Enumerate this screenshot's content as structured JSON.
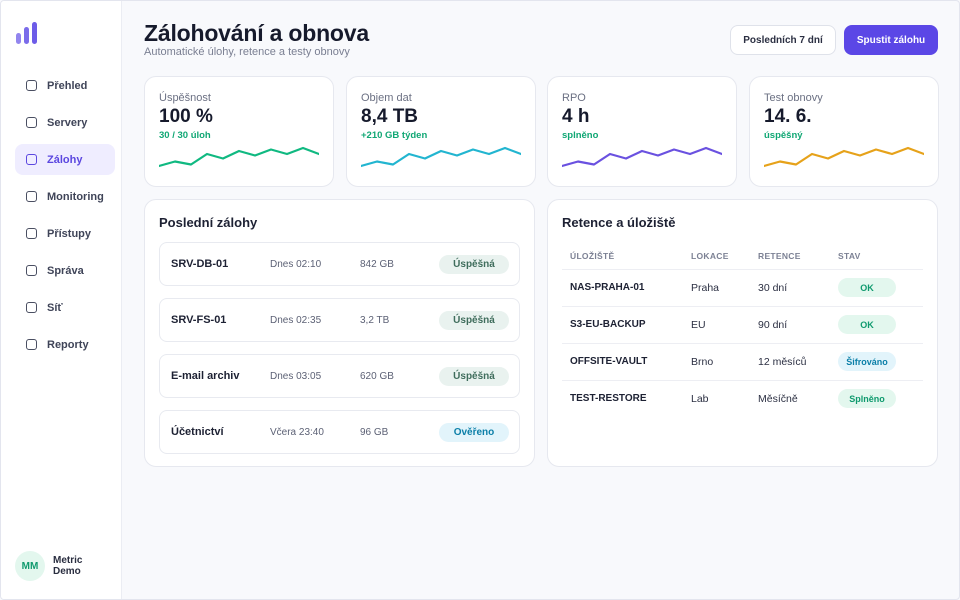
{
  "user": {
    "initials": "MM",
    "name": "Metric Demo"
  },
  "nav": [
    {
      "label": "Přehled",
      "active": false
    },
    {
      "label": "Servery",
      "active": false
    },
    {
      "label": "Zálohy",
      "active": true
    },
    {
      "label": "Monitoring",
      "active": false
    },
    {
      "label": "Přístupy",
      "active": false
    },
    {
      "label": "Správa",
      "active": false
    },
    {
      "label": "Síť",
      "active": false
    },
    {
      "label": "Reporty",
      "active": false
    }
  ],
  "header": {
    "title": "Zálohování a obnova",
    "subtitle": "Automatické úlohy, retence a testy obnovy",
    "period_button": "Posledních 7 dní",
    "run_button": "Spustit zálohu"
  },
  "kpis": [
    {
      "label": "Úspěšnost",
      "value": "100 %",
      "delta": "30 / 30 úloh",
      "color": "#10b981",
      "trend": [
        4,
        7,
        5,
        12,
        9,
        14,
        11,
        15,
        12,
        16,
        12
      ]
    },
    {
      "label": "Objem dat",
      "value": "8,4 TB",
      "delta": "+210 GB týden",
      "color": "#22b5d0",
      "trend": [
        4,
        7,
        5,
        12,
        9,
        14,
        11,
        15,
        12,
        16,
        12
      ]
    },
    {
      "label": "RPO",
      "value": "4 h",
      "delta": "splněno",
      "color": "#6a51e0",
      "trend": [
        4,
        7,
        5,
        12,
        9,
        14,
        11,
        15,
        12,
        16,
        12
      ]
    },
    {
      "label": "Test obnovy",
      "value": "14. 6.",
      "delta": "úspěšný",
      "color": "#e6a21a",
      "trend": [
        4,
        7,
        5,
        12,
        9,
        14,
        11,
        15,
        12,
        16,
        12
      ]
    }
  ],
  "backups": {
    "title": "Poslední zálohy",
    "rows": [
      {
        "name": "SRV-DB-01",
        "time": "Dnes 02:10",
        "size": "842 GB",
        "status": "Úspěšná",
        "kind": "success"
      },
      {
        "name": "SRV-FS-01",
        "time": "Dnes 02:35",
        "size": "3,2 TB",
        "status": "Úspěšná",
        "kind": "success"
      },
      {
        "name": "E-mail archiv",
        "time": "Dnes 03:05",
        "size": "620 GB",
        "status": "Úspěšná",
        "kind": "success"
      },
      {
        "name": "Účetnictví",
        "time": "Včera 23:40",
        "size": "96 GB",
        "status": "Ověřeno",
        "kind": "info"
      }
    ]
  },
  "retention": {
    "title": "Retence a úložiště",
    "columns": [
      "ÚLOŽIŠTĚ",
      "LOKACE",
      "RETENCE",
      "STAV"
    ],
    "rows": [
      {
        "storage": "NAS-PRAHA-01",
        "location": "Praha",
        "retention": "30 dní",
        "status": "OK",
        "kind": "ok"
      },
      {
        "storage": "S3-EU-BACKUP",
        "location": "EU",
        "retention": "90 dní",
        "status": "OK",
        "kind": "ok"
      },
      {
        "storage": "OFFSITE-VAULT",
        "location": "Brno",
        "retention": "12 měsíců",
        "status": "Šifrováno",
        "kind": "info"
      },
      {
        "storage": "TEST-RESTORE",
        "location": "Lab",
        "retention": "Měsíčně",
        "status": "Splněno",
        "kind": "ok"
      }
    ]
  },
  "colors": {
    "accent": "#5b47e6",
    "success_text": "#0f9a6e",
    "success_bg": "#e3f7ee",
    "info_text": "#0b7fa8",
    "info_bg": "#e2f4fb",
    "neutral_badge_text": "#3f6d5c",
    "neutral_badge_bg": "#e9f2ef"
  }
}
